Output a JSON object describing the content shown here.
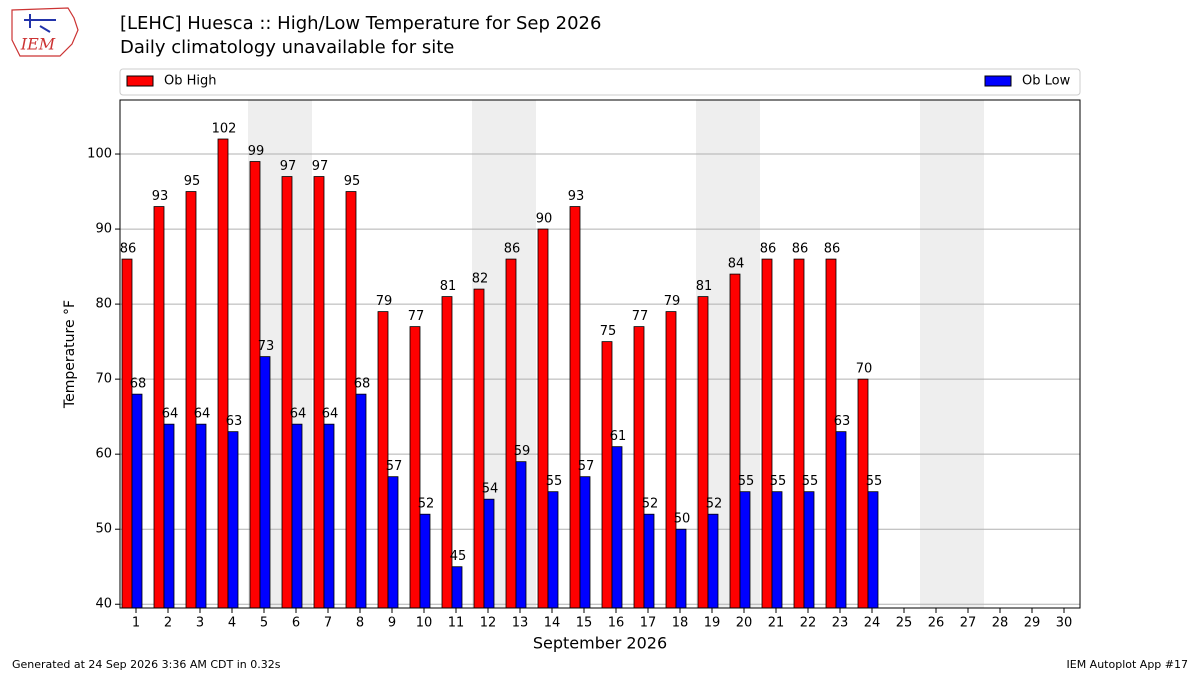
{
  "logo": "IEM",
  "footer": {
    "left": "Generated at 24 Sep 2026 3:36 AM CDT in 0.32s",
    "right": "IEM Autoplot App #17"
  },
  "chart_data": {
    "type": "bar",
    "title": "[LEHC] Huesca :: High/Low Temperature for Sep 2026",
    "subtitle": "Daily climatology unavailable for site",
    "x_label": "September 2026",
    "y_label": "Temperature °F",
    "categories": [
      "1",
      "2",
      "3",
      "4",
      "5",
      "6",
      "7",
      "8",
      "9",
      "10",
      "11",
      "12",
      "13",
      "14",
      "15",
      "16",
      "17",
      "18",
      "19",
      "20",
      "21",
      "22",
      "23",
      "24",
      "25",
      "26",
      "27",
      "28",
      "29",
      "30"
    ],
    "series": [
      {
        "name": "Ob High",
        "color": "#ff0000",
        "values": [
          86,
          93,
          95,
          102,
          99,
          97,
          97,
          95,
          79,
          77,
          81,
          82,
          86,
          90,
          93,
          75,
          77,
          79,
          81,
          84,
          86,
          86,
          86,
          70,
          null,
          null,
          null,
          null,
          null,
          null
        ]
      },
      {
        "name": "Ob Low",
        "color": "#0000ff",
        "values": [
          68,
          64,
          64,
          63,
          73,
          64,
          64,
          68,
          57,
          52,
          45,
          54,
          59,
          55,
          57,
          61,
          52,
          50,
          52,
          55,
          55,
          55,
          63,
          55,
          null,
          null,
          null,
          null,
          null,
          null
        ]
      }
    ],
    "ylim": [
      39.5,
      107.2
    ],
    "yticks": [
      40,
      50,
      60,
      70,
      80,
      90,
      100
    ],
    "grid": true
  }
}
